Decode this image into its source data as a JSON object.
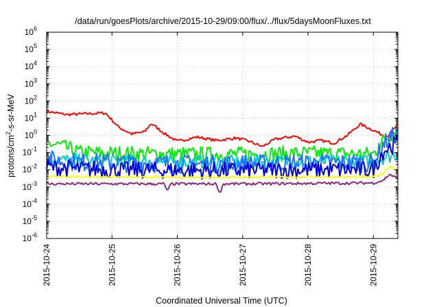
{
  "chart_data": {
    "type": "line",
    "title": "/data/run/goesPlots/archive/2015-10-29/09:00/flux/../flux/5daysMoonFluxes.txt",
    "xlabel": "Coordinated Universal Time (UTC)",
    "ylabel": "protons/cm²-s-sr-MeV",
    "ylabel_parts": {
      "before": "protons/cm",
      "sup": "2",
      "after": "-s-sr-MeV"
    },
    "yscale": "log",
    "ylim": [
      1e-06,
      1000000.0
    ],
    "y_ticks": [
      {
        "base": "10",
        "exp": "-6"
      },
      {
        "base": "10",
        "exp": "-5"
      },
      {
        "base": "10",
        "exp": "-4"
      },
      {
        "base": "10",
        "exp": "-3"
      },
      {
        "base": "10",
        "exp": "-2"
      },
      {
        "base": "10",
        "exp": "-1"
      },
      {
        "base": "10",
        "exp": "0"
      },
      {
        "base": "10",
        "exp": "1"
      },
      {
        "base": "10",
        "exp": "2"
      },
      {
        "base": "10",
        "exp": "3"
      },
      {
        "base": "10",
        "exp": "4"
      },
      {
        "base": "10",
        "exp": "5"
      },
      {
        "base": "10",
        "exp": "6"
      }
    ],
    "xlim": [
      "2015-10-24",
      "2015-10-29 09:00"
    ],
    "x_ticks": [
      "2015-10-24",
      "2015-10-25",
      "2015-10-26",
      "2015-10-27",
      "2015-10-28",
      "2015-10-29"
    ],
    "grid": true,
    "series": [
      {
        "color": "#ff0000",
        "x": [
          0,
          0.3,
          0.6,
          0.9,
          1.1,
          1.3,
          1.5,
          1.6,
          1.8,
          2.0,
          2.3,
          2.6,
          2.9,
          3.1,
          3.3,
          3.5,
          3.8,
          4.0,
          4.2,
          4.4,
          4.6,
          4.8,
          5.0,
          5.2,
          5.375
        ],
        "y": [
          25,
          16,
          18,
          20,
          3.0,
          1.2,
          1.6,
          5.0,
          1.3,
          0.45,
          0.8,
          0.5,
          0.7,
          0.45,
          0.22,
          0.6,
          0.9,
          0.4,
          0.5,
          0.35,
          1.0,
          4.5,
          2.0,
          0.8,
          4.0
        ],
        "noise": 0.08
      },
      {
        "color": "#00ee00",
        "x": [
          0,
          0.2,
          0.5,
          1.0,
          2.0,
          3.0,
          4.0,
          5.0,
          5.15,
          5.375
        ],
        "y": [
          0.35,
          0.25,
          0.1,
          0.09,
          0.08,
          0.08,
          0.09,
          0.08,
          0.5,
          2.2
        ],
        "noise": 0.45
      },
      {
        "color": "#00cccc",
        "x": [
          0,
          0.3,
          1.0,
          2.0,
          3.0,
          4.0,
          5.0,
          5.15,
          5.375
        ],
        "y": [
          0.045,
          0.035,
          0.03,
          0.028,
          0.028,
          0.03,
          0.03,
          0.05,
          0.08
        ],
        "noise": 0.4
      },
      {
        "color": "#1e6fff",
        "x": [
          0,
          0.3,
          1.0,
          2.0,
          3.0,
          4.0,
          5.0,
          5.15,
          5.375
        ],
        "y": [
          0.04,
          0.03,
          0.025,
          0.022,
          0.022,
          0.025,
          0.025,
          0.3,
          1.5
        ],
        "noise": 0.55
      },
      {
        "color": "#0000dd",
        "x": [
          0,
          0.3,
          1.0,
          2.0,
          3.0,
          4.0,
          5.0,
          5.15,
          5.375
        ],
        "y": [
          0.015,
          0.012,
          0.01,
          0.009,
          0.009,
          0.01,
          0.01,
          0.12,
          0.4
        ],
        "noise": 0.5
      },
      {
        "color": "#ffff00",
        "x": [
          0,
          1.0,
          2.0,
          3.0,
          4.0,
          5.0,
          5.15,
          5.25,
          5.375
        ],
        "y": [
          0.004,
          0.0038,
          0.0036,
          0.0037,
          0.0038,
          0.0038,
          0.006,
          0.016,
          0.01
        ],
        "noise": 0.04
      },
      {
        "color": "#8b2a7a",
        "x": [
          0,
          1.0,
          1.8,
          1.85,
          1.9,
          2.6,
          2.65,
          2.7,
          3.0,
          4.0,
          5.0,
          5.15,
          5.25,
          5.375
        ],
        "y": [
          0.0015,
          0.0015,
          0.0015,
          0.0005,
          0.0015,
          0.0015,
          0.0004,
          0.0015,
          0.0015,
          0.0016,
          0.0017,
          0.0024,
          0.0055,
          0.0028
        ],
        "noise": 0.08
      }
    ]
  }
}
